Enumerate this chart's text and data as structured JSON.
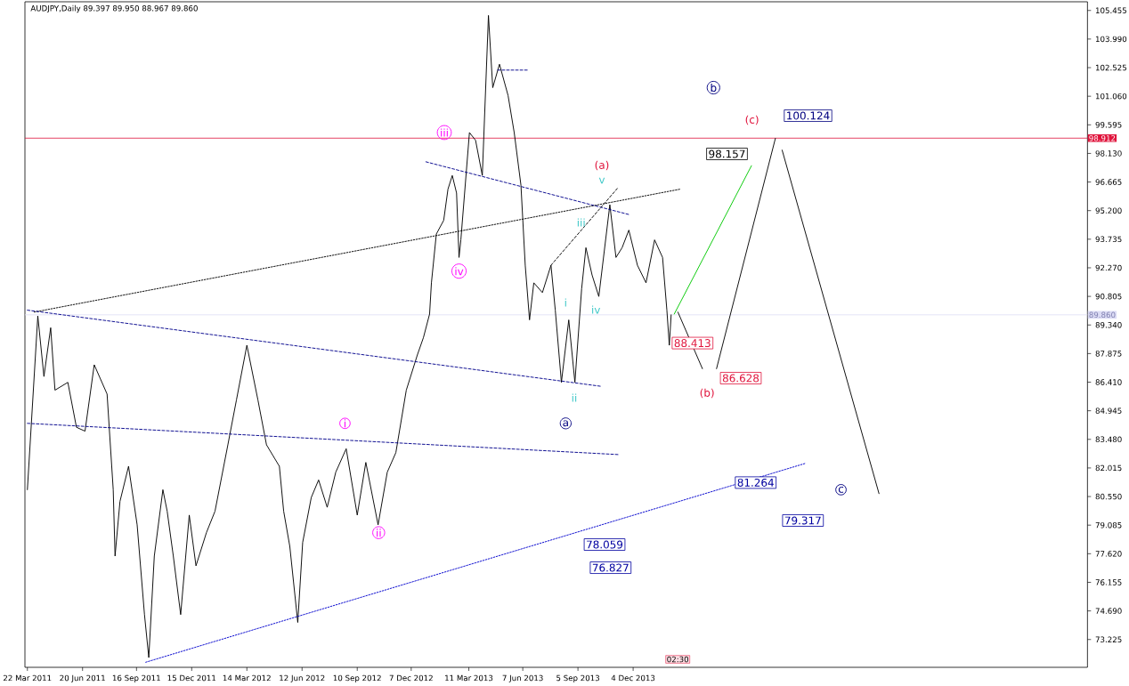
{
  "chart_data": {
    "type": "line",
    "title": "AUDJPY,Daily  89.397 89.950 88.967 89.860",
    "xlim": [
      "2011-03-18",
      "2015-12-15"
    ],
    "ylim": [
      71.8,
      105.9
    ],
    "xticks": [
      {
        "value": "2011-03-22",
        "label": "22 Mar 2011"
      },
      {
        "value": "2011-06-20",
        "label": "20 Jun 2011"
      },
      {
        "value": "2011-09-16",
        "label": "16 Sep 2011"
      },
      {
        "value": "2011-12-15",
        "label": "15 Dec 2011"
      },
      {
        "value": "2012-03-14",
        "label": "14 Mar 2012"
      },
      {
        "value": "2012-06-12",
        "label": "12 Jun 2012"
      },
      {
        "value": "2012-09-10",
        "label": "10 Sep 2012"
      },
      {
        "value": "2012-12-07",
        "label": "7 Dec 2012"
      },
      {
        "value": "2013-03-11",
        "label": "11 Mar 2013"
      },
      {
        "value": "2013-06-07",
        "label": "7 Jun 2013"
      },
      {
        "value": "2013-09-05",
        "label": "5 Sep 2013"
      },
      {
        "value": "2013-12-04",
        "label": "4 Dec 2013"
      }
    ],
    "yticks": [
      {
        "value": 73.225,
        "label": "73.225"
      },
      {
        "value": 74.69,
        "label": "74.690"
      },
      {
        "value": 76.155,
        "label": "76.155"
      },
      {
        "value": 77.62,
        "label": "77.620"
      },
      {
        "value": 79.085,
        "label": "79.085"
      },
      {
        "value": 80.55,
        "label": "80.550"
      },
      {
        "value": 82.015,
        "label": "82.015"
      },
      {
        "value": 83.48,
        "label": "83.480"
      },
      {
        "value": 84.945,
        "label": "84.945"
      },
      {
        "value": 86.41,
        "label": "86.410"
      },
      {
        "value": 87.875,
        "label": "87.875"
      },
      {
        "value": 89.34,
        "label": "89.340"
      },
      {
        "value": 90.805,
        "label": "90.805"
      },
      {
        "value": 92.27,
        "label": "92.270"
      },
      {
        "value": 93.735,
        "label": "93.735"
      },
      {
        "value": 95.2,
        "label": "95.200"
      },
      {
        "value": 96.665,
        "label": "96.665"
      },
      {
        "value": 98.13,
        "label": "98.130"
      },
      {
        "value": 99.595,
        "label": "99.595"
      },
      {
        "value": 101.06,
        "label": "101.060"
      },
      {
        "value": 102.525,
        "label": "102.525"
      },
      {
        "value": 103.99,
        "label": "103.990"
      },
      {
        "value": 105.455,
        "label": "105.455"
      }
    ],
    "marker": "none",
    "series": [
      {
        "color": "#000000",
        "x": [
          "2011-03-22",
          "2011-04-08",
          "2011-04-18",
          "2011-04-29",
          "2011-05-06",
          "2011-05-27",
          "2011-06-10",
          "2011-06-24",
          "2011-07-09",
          "2011-07-30",
          "2011-08-09",
          "2011-08-12",
          "2011-08-20",
          "2011-09-03",
          "2011-09-17",
          "2011-09-29",
          "2011-10-06",
          "2011-10-15",
          "2011-10-29",
          "2011-11-05",
          "2011-11-15",
          "2011-11-27",
          "2011-12-11",
          "2011-12-22",
          "2012-01-08",
          "2012-01-22",
          "2012-02-12",
          "2012-02-26",
          "2012-03-14",
          "2012-04-01",
          "2012-04-15",
          "2012-05-06",
          "2012-05-13",
          "2012-05-23",
          "2012-06-05",
          "2012-06-13",
          "2012-06-27",
          "2012-07-09",
          "2012-07-23",
          "2012-08-06",
          "2012-08-23",
          "2012-09-10",
          "2012-09-24",
          "2012-10-14",
          "2012-10-29",
          "2012-11-12",
          "2012-11-29",
          "2012-12-17",
          "2012-12-27",
          "2013-01-06",
          "2013-01-09",
          "2013-01-17",
          "2013-01-29",
          "2013-02-05",
          "2013-02-12",
          "2013-02-19",
          "2013-02-23",
          "2013-02-26",
          "2013-03-12",
          "2013-03-22",
          "2013-04-02",
          "2013-04-12",
          "2013-04-19",
          "2013-04-30",
          "2013-05-14",
          "2013-05-24",
          "2013-06-04",
          "2013-06-11",
          "2013-06-18",
          "2013-06-25",
          "2013-07-09",
          "2013-07-23",
          "2013-07-30",
          "2013-08-09",
          "2013-08-21",
          "2013-08-31",
          "2013-09-11",
          "2013-09-18",
          "2013-09-28",
          "2013-10-09",
          "2013-10-27",
          "2013-11-06",
          "2013-11-16",
          "2013-11-27",
          "2013-12-11",
          "2013-12-25",
          "2014-01-08",
          "2014-01-21",
          "2014-01-28",
          "2014-02-01",
          "2014-02-04"
        ],
        "values": [
          80.9,
          89.8,
          86.7,
          89.2,
          86.0,
          86.4,
          84.1,
          83.9,
          87.3,
          85.8,
          80.9,
          77.5,
          80.3,
          82.1,
          79.1,
          74.5,
          72.3,
          77.5,
          80.9,
          79.8,
          77.5,
          74.5,
          79.6,
          77.0,
          78.7,
          79.8,
          83.2,
          85.5,
          88.3,
          85.5,
          83.2,
          82.1,
          79.8,
          78.0,
          74.1,
          78.2,
          80.5,
          81.4,
          80.0,
          81.8,
          83.0,
          79.6,
          82.3,
          79.1,
          81.8,
          82.8,
          86.0,
          87.8,
          88.7,
          89.9,
          91.5,
          94.0,
          94.7,
          96.3,
          97.0,
          96.1,
          92.8,
          93.7,
          99.2,
          98.8,
          97.0,
          105.2,
          101.5,
          102.7,
          101.1,
          99.2,
          96.5,
          92.4,
          89.6,
          91.5,
          91.0,
          92.4,
          90.1,
          86.4,
          89.6,
          86.4,
          91.2,
          93.3,
          91.9,
          90.8,
          95.5,
          92.8,
          93.3,
          94.2,
          92.4,
          91.5,
          93.7,
          92.8,
          90.1,
          88.3,
          89.86
        ]
      },
      {
        "color": "#000000",
        "line_style": "dotted",
        "x": [
          "2011-04-02",
          "2014-02-19"
        ],
        "values": [
          90.0,
          96.3
        ]
      },
      {
        "color": "#00008b",
        "line_style": "dashed",
        "x": [
          "2011-03-22",
          "2013-10-12"
        ],
        "values": [
          90.1,
          86.2
        ]
      },
      {
        "color": "#00008b",
        "line_style": "dashed",
        "x": [
          "2011-03-22",
          "2013-11-10"
        ],
        "values": [
          84.3,
          82.7
        ]
      },
      {
        "color": "#0000cd",
        "line_style": "dotted",
        "x": [
          "2011-10-01",
          "2014-09-12"
        ],
        "values": [
          72.06,
          82.26
        ]
      },
      {
        "color": "#00008b",
        "line_style": "dashed",
        "x": [
          "2012-12-31",
          "2013-11-27"
        ],
        "values": [
          97.7,
          95.0
        ]
      },
      {
        "color": "#00008b",
        "line_style": "dashed",
        "x": [
          "2013-04-27",
          "2013-06-15"
        ],
        "values": [
          102.4,
          102.4
        ]
      },
      {
        "color": "#000000",
        "line_style": "dashed",
        "x": [
          "2013-07-23",
          "2013-11-10"
        ],
        "values": [
          92.4,
          96.4
        ]
      },
      {
        "color": "#00c800",
        "x": [
          "2014-02-09",
          "2014-06-15"
        ],
        "values": [
          89.9,
          97.5
        ]
      },
      {
        "color": "#000000",
        "x": [
          "2014-02-15",
          "2014-03-27"
        ],
        "values": [
          90.0,
          87.1
        ]
      },
      {
        "color": "#000000",
        "x": [
          "2014-04-19",
          "2014-07-24"
        ],
        "values": [
          87.1,
          98.9
        ]
      },
      {
        "color": "#000000",
        "x": [
          "2014-08-04",
          "2015-01-09"
        ],
        "values": [
          98.3,
          80.7
        ]
      }
    ],
    "ref_lines": [
      {
        "axis": "y",
        "value": 98.912,
        "label": "98.912",
        "color": "#e0143c"
      },
      {
        "axis": "y",
        "value": 89.86,
        "label": "89.860",
        "color": "#dcdcf5"
      }
    ],
    "annotations": [
      "100.124",
      "98.157",
      {
        "text": "88.413",
        "x": "2014-02-05",
        "y": 88.413
      },
      "86.628",
      {
        "text": "81.264",
        "x": "2014-05-19",
        "y": 81.264
      },
      "79.317",
      "78.059",
      "76.827",
      {
        "text": "iii",
        "x": "2013-01-30",
        "y": 99.2
      },
      {
        "text": "iv",
        "x": "2013-02-23",
        "y": 92.1
      },
      {
        "text": "i",
        "x": "2012-08-21",
        "y": 84.3
      },
      {
        "text": "ii",
        "x": "2012-10-15",
        "y": 78.7
      },
      "(a)",
      "v",
      "iii",
      "i",
      "iv",
      "ii",
      {
        "text": "a",
        "x": "2013-08-16",
        "y": 84.3
      },
      {
        "text": "b",
        "x": "2014-04-14",
        "y": 101.5
      },
      "(c)",
      "(b)",
      {
        "text": "c",
        "x": "2014-11-08",
        "y": 80.9
      },
      "02:30"
    ]
  }
}
